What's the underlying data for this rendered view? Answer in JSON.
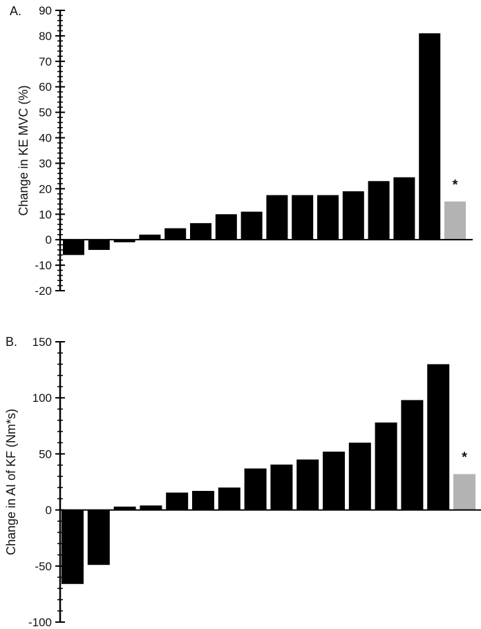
{
  "chart_data": [
    {
      "type": "bar",
      "panel_label": "A.",
      "ylabel": "Change in KE MVC (%)",
      "ylim": [
        -20,
        90
      ],
      "yticks": [
        -20,
        -10,
        0,
        10,
        20,
        30,
        40,
        50,
        60,
        70,
        80,
        90
      ],
      "minor_tick_step": 2,
      "values": [
        -6,
        -4,
        -1,
        2,
        4.5,
        6.5,
        10,
        11,
        17.5,
        17.5,
        17.5,
        19,
        23,
        24.5,
        81,
        15
      ],
      "bar_colors": [
        "#000000",
        "#000000",
        "#000000",
        "#000000",
        "#000000",
        "#000000",
        "#000000",
        "#000000",
        "#000000",
        "#000000",
        "#000000",
        "#000000",
        "#000000",
        "#000000",
        "#000000",
        "#b3b3b3"
      ],
      "annotation": "*",
      "annotation_bar_index": 15
    },
    {
      "type": "bar",
      "panel_label": "B.",
      "ylabel": "Change in AI of KF (Nm*s)",
      "ylim": [
        -100,
        150
      ],
      "yticks": [
        -100,
        -50,
        0,
        50,
        100,
        150
      ],
      "minor_tick_step": 10,
      "values": [
        -66,
        -49,
        3,
        4,
        15.5,
        17,
        20,
        37,
        40.5,
        45,
        52,
        60,
        78,
        98,
        130,
        32
      ],
      "bar_colors": [
        "#000000",
        "#000000",
        "#000000",
        "#000000",
        "#000000",
        "#000000",
        "#000000",
        "#000000",
        "#000000",
        "#000000",
        "#000000",
        "#000000",
        "#000000",
        "#000000",
        "#000000",
        "#b3b3b3"
      ],
      "annotation": "*",
      "annotation_bar_index": 15
    }
  ]
}
